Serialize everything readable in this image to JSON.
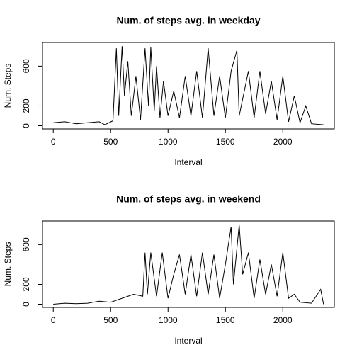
{
  "chart_data": [
    {
      "type": "line",
      "title": "Num. of steps avg. in weekday",
      "x_label": "Interval",
      "y_label": "Num. Steps",
      "xlim": [
        -94,
        2449
      ],
      "ylim": [
        -32,
        838
      ],
      "xticks": [
        0,
        500,
        1000,
        1500,
        2000
      ],
      "yticks": [
        0,
        200,
        600
      ],
      "series": [
        {
          "color": "#000000",
          "x": [
            0,
            100,
            200,
            300,
            400,
            450,
            520,
            550,
            570,
            600,
            620,
            650,
            680,
            720,
            760,
            800,
            830,
            850,
            880,
            900,
            930,
            960,
            1000,
            1050,
            1100,
            1150,
            1200,
            1250,
            1300,
            1350,
            1400,
            1450,
            1500,
            1550,
            1600,
            1620,
            1700,
            1750,
            1800,
            1850,
            1900,
            1950,
            2000,
            2050,
            2100,
            2150,
            2200,
            2250,
            2355
          ],
          "values": [
            30,
            40,
            20,
            30,
            40,
            10,
            50,
            780,
            100,
            800,
            300,
            650,
            100,
            500,
            60,
            780,
            200,
            790,
            150,
            600,
            80,
            450,
            100,
            350,
            80,
            500,
            100,
            550,
            80,
            780,
            100,
            500,
            80,
            550,
            760,
            100,
            550,
            80,
            550,
            120,
            450,
            60,
            500,
            40,
            300,
            30,
            200,
            20,
            10
          ]
        }
      ]
    },
    {
      "type": "line",
      "title": "Num. of steps avg. in weekend",
      "x_label": "Interval",
      "y_label": "Num. Steps",
      "xlim": [
        -94,
        2449
      ],
      "ylim": [
        -32,
        838
      ],
      "xticks": [
        0,
        500,
        1000,
        1500,
        2000
      ],
      "yticks": [
        0,
        200,
        600
      ],
      "series": [
        {
          "color": "#000000",
          "x": [
            0,
            100,
            200,
            300,
            400,
            500,
            600,
            700,
            780,
            800,
            820,
            850,
            900,
            950,
            1000,
            1050,
            1100,
            1150,
            1200,
            1250,
            1300,
            1350,
            1400,
            1450,
            1500,
            1550,
            1570,
            1620,
            1650,
            1700,
            1750,
            1800,
            1850,
            1900,
            1950,
            2000,
            2050,
            2100,
            2150,
            2250,
            2330,
            2355
          ],
          "values": [
            0,
            10,
            5,
            10,
            30,
            20,
            60,
            100,
            80,
            520,
            100,
            520,
            80,
            520,
            60,
            300,
            500,
            100,
            500,
            80,
            520,
            100,
            500,
            60,
            400,
            780,
            200,
            800,
            300,
            520,
            60,
            450,
            100,
            400,
            80,
            520,
            60,
            100,
            20,
            10,
            150,
            0
          ]
        }
      ]
    }
  ]
}
